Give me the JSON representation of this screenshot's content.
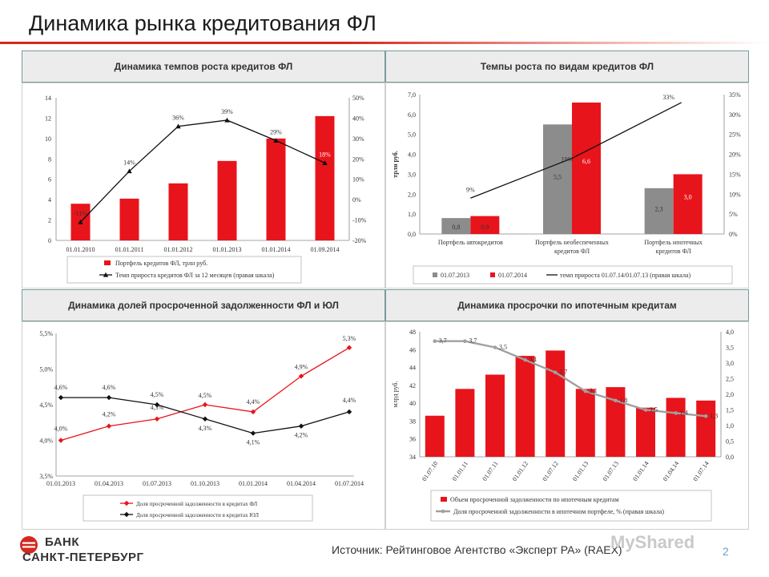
{
  "page": {
    "title": "Динамика рынка кредитования ФЛ",
    "source": "Источник: Рейтинговое Агентство «Эксперт РА» (RAEX)",
    "page_number": "2",
    "watermark": "MyShared",
    "bank_line1": "БАНК",
    "bank_line2": "САНКТ-ПЕТЕРБУРГ"
  },
  "panels": {
    "p1": "Динамика темпов роста кредитов ФЛ",
    "p2": "Темпы роста по видам кредитов ФЛ",
    "p3": "Динамика долей просроченной задолженности ФЛ и ЮЛ",
    "p4": "Динамика просрочки по ипотечным кредитам"
  },
  "colors": {
    "red": "#e8141b",
    "gray": "#8c8c8c",
    "black": "#111111",
    "accent": "#d5281e",
    "lightline": "#a0a0a0"
  },
  "chart_data": [
    {
      "type": "bar",
      "categories": [
        "01.01.2010",
        "01.01.2011",
        "01.01.2012",
        "01.01.2013",
        "01.01.2014",
        "01.09.2014"
      ],
      "series": [
        {
          "name": "Портфель кредитов ФЛ, трлн руб.",
          "kind": "bar",
          "axis": "left",
          "values": [
            3.6,
            4.1,
            5.6,
            7.8,
            10.0,
            12.2
          ]
        },
        {
          "name": "Темп прироста кредитов ФЛ за 12 месяцев (правая шкала)",
          "kind": "line",
          "axis": "right",
          "values": [
            -11,
            14,
            36,
            39,
            29,
            18
          ],
          "labels": [
            "-11%",
            "14%",
            "36%",
            "39%",
            "29%",
            "18%"
          ]
        }
      ],
      "y_left": {
        "min": 0,
        "max": 14,
        "ticks": [
          "0",
          "2",
          "4",
          "6",
          "8",
          "10",
          "12",
          "14"
        ]
      },
      "y_right": {
        "min": -20,
        "max": 50,
        "ticks": [
          "-20%",
          "-10%",
          "0%",
          "10%",
          "20%",
          "30%",
          "40%",
          "50%"
        ]
      },
      "legend": "bottom"
    },
    {
      "type": "bar",
      "categories": [
        "Портфель автокредитов",
        "Портфель необеспеченных кредитов ФЛ",
        "Портфель ипотечных кредитов ФЛ"
      ],
      "category_lines": [
        [
          "Портфель автокредитов"
        ],
        [
          "Портфель необеспеченных",
          "кредитов ФЛ"
        ],
        [
          "Портфель ипотечных",
          "кредитов ФЛ"
        ]
      ],
      "series": [
        {
          "name": "01.07.2013",
          "kind": "bar",
          "axis": "left",
          "values": [
            0.8,
            5.5,
            2.3
          ],
          "labels": [
            "0,8",
            "5,5",
            "2,3"
          ]
        },
        {
          "name": "01.07.2014",
          "kind": "bar",
          "axis": "left",
          "values": [
            0.9,
            6.6,
            3.0
          ],
          "labels": [
            "0,9",
            "6,6",
            "3,0"
          ]
        },
        {
          "name": "темп прироста 01.07.14/01.07.13 (правая шкала)",
          "kind": "line",
          "axis": "right",
          "values": [
            9,
            19,
            33
          ],
          "labels": [
            "9%",
            "19%",
            "33%"
          ]
        }
      ],
      "ylabel": "трлн руб.",
      "y_left": {
        "min": 0,
        "max": 7,
        "ticks": [
          "0,0",
          "1,0",
          "2,0",
          "3,0",
          "4,0",
          "5,0",
          "6,0",
          "7,0"
        ]
      },
      "y_right": {
        "min": 0,
        "max": 35,
        "ticks": [
          "0%",
          "5%",
          "10%",
          "15%",
          "20%",
          "25%",
          "30%",
          "35%"
        ]
      },
      "legend": "bottom"
    },
    {
      "type": "line",
      "categories": [
        "01.01.2013",
        "01.04.2013",
        "01.07.2013",
        "01.10.2013",
        "01.01.2014",
        "01.04.2014",
        "01.07.2014"
      ],
      "series": [
        {
          "name": "Доля просроченной задолженности в кредитах ФЛ",
          "values": [
            4.0,
            4.2,
            4.3,
            4.5,
            4.4,
            4.9,
            5.3
          ],
          "labels": [
            "4,0%",
            "4,2%",
            "4,3%",
            "4,5%",
            "4,4%",
            "4,9%",
            "5,3%"
          ]
        },
        {
          "name": "Доля просроченной задолженности в кредитах ЮЛ",
          "values": [
            4.6,
            4.6,
            4.5,
            4.3,
            4.1,
            4.2,
            4.4
          ],
          "labels": [
            "4,6%",
            "4,6%",
            "4,5%",
            "4,3%",
            "4,1%",
            "4,2%",
            "4,4%"
          ]
        }
      ],
      "y": {
        "min": 3.5,
        "max": 5.5,
        "ticks": [
          "3,5%",
          "4,0%",
          "4,5%",
          "5,0%",
          "5,5%"
        ]
      },
      "legend": "bottom"
    },
    {
      "type": "bar",
      "categories": [
        "01.07.10",
        "01.01.11",
        "01.07.11",
        "01.01.12",
        "01.07.12",
        "01.01.13",
        "01.07.13",
        "01.01.14",
        "01.04.14",
        "01.07.14"
      ],
      "series": [
        {
          "name": "Объем просроченной задолженности по ипотечным кредитам",
          "kind": "bar",
          "axis": "left",
          "values": [
            38.6,
            41.6,
            43.2,
            45.3,
            45.9,
            41.6,
            41.8,
            39.5,
            40.6,
            40.3
          ]
        },
        {
          "name": "Доля просроченной задолженности в ипотечном портфеле, % (правая шкала)",
          "kind": "line",
          "axis": "right",
          "values": [
            3.7,
            3.7,
            3.5,
            3.1,
            2.7,
            2.1,
            1.8,
            1.5,
            1.4,
            1.3
          ],
          "labels": [
            "3,7",
            "3,7",
            "3,5",
            "3,1",
            "2,7",
            "2,1",
            "1,8",
            "1,5",
            "1,4",
            "1,3"
          ]
        }
      ],
      "ylabel": "млрд руб.",
      "y_left": {
        "min": 34,
        "max": 48,
        "ticks": [
          "34",
          "36",
          "38",
          "40",
          "42",
          "44",
          "46",
          "48"
        ]
      },
      "y_right": {
        "min": 0,
        "max": 4,
        "ticks": [
          "0,0",
          "0,5",
          "1,0",
          "1,5",
          "2,0",
          "2,5",
          "3,0",
          "3,5",
          "4,0"
        ]
      },
      "legend": "bottom"
    }
  ]
}
